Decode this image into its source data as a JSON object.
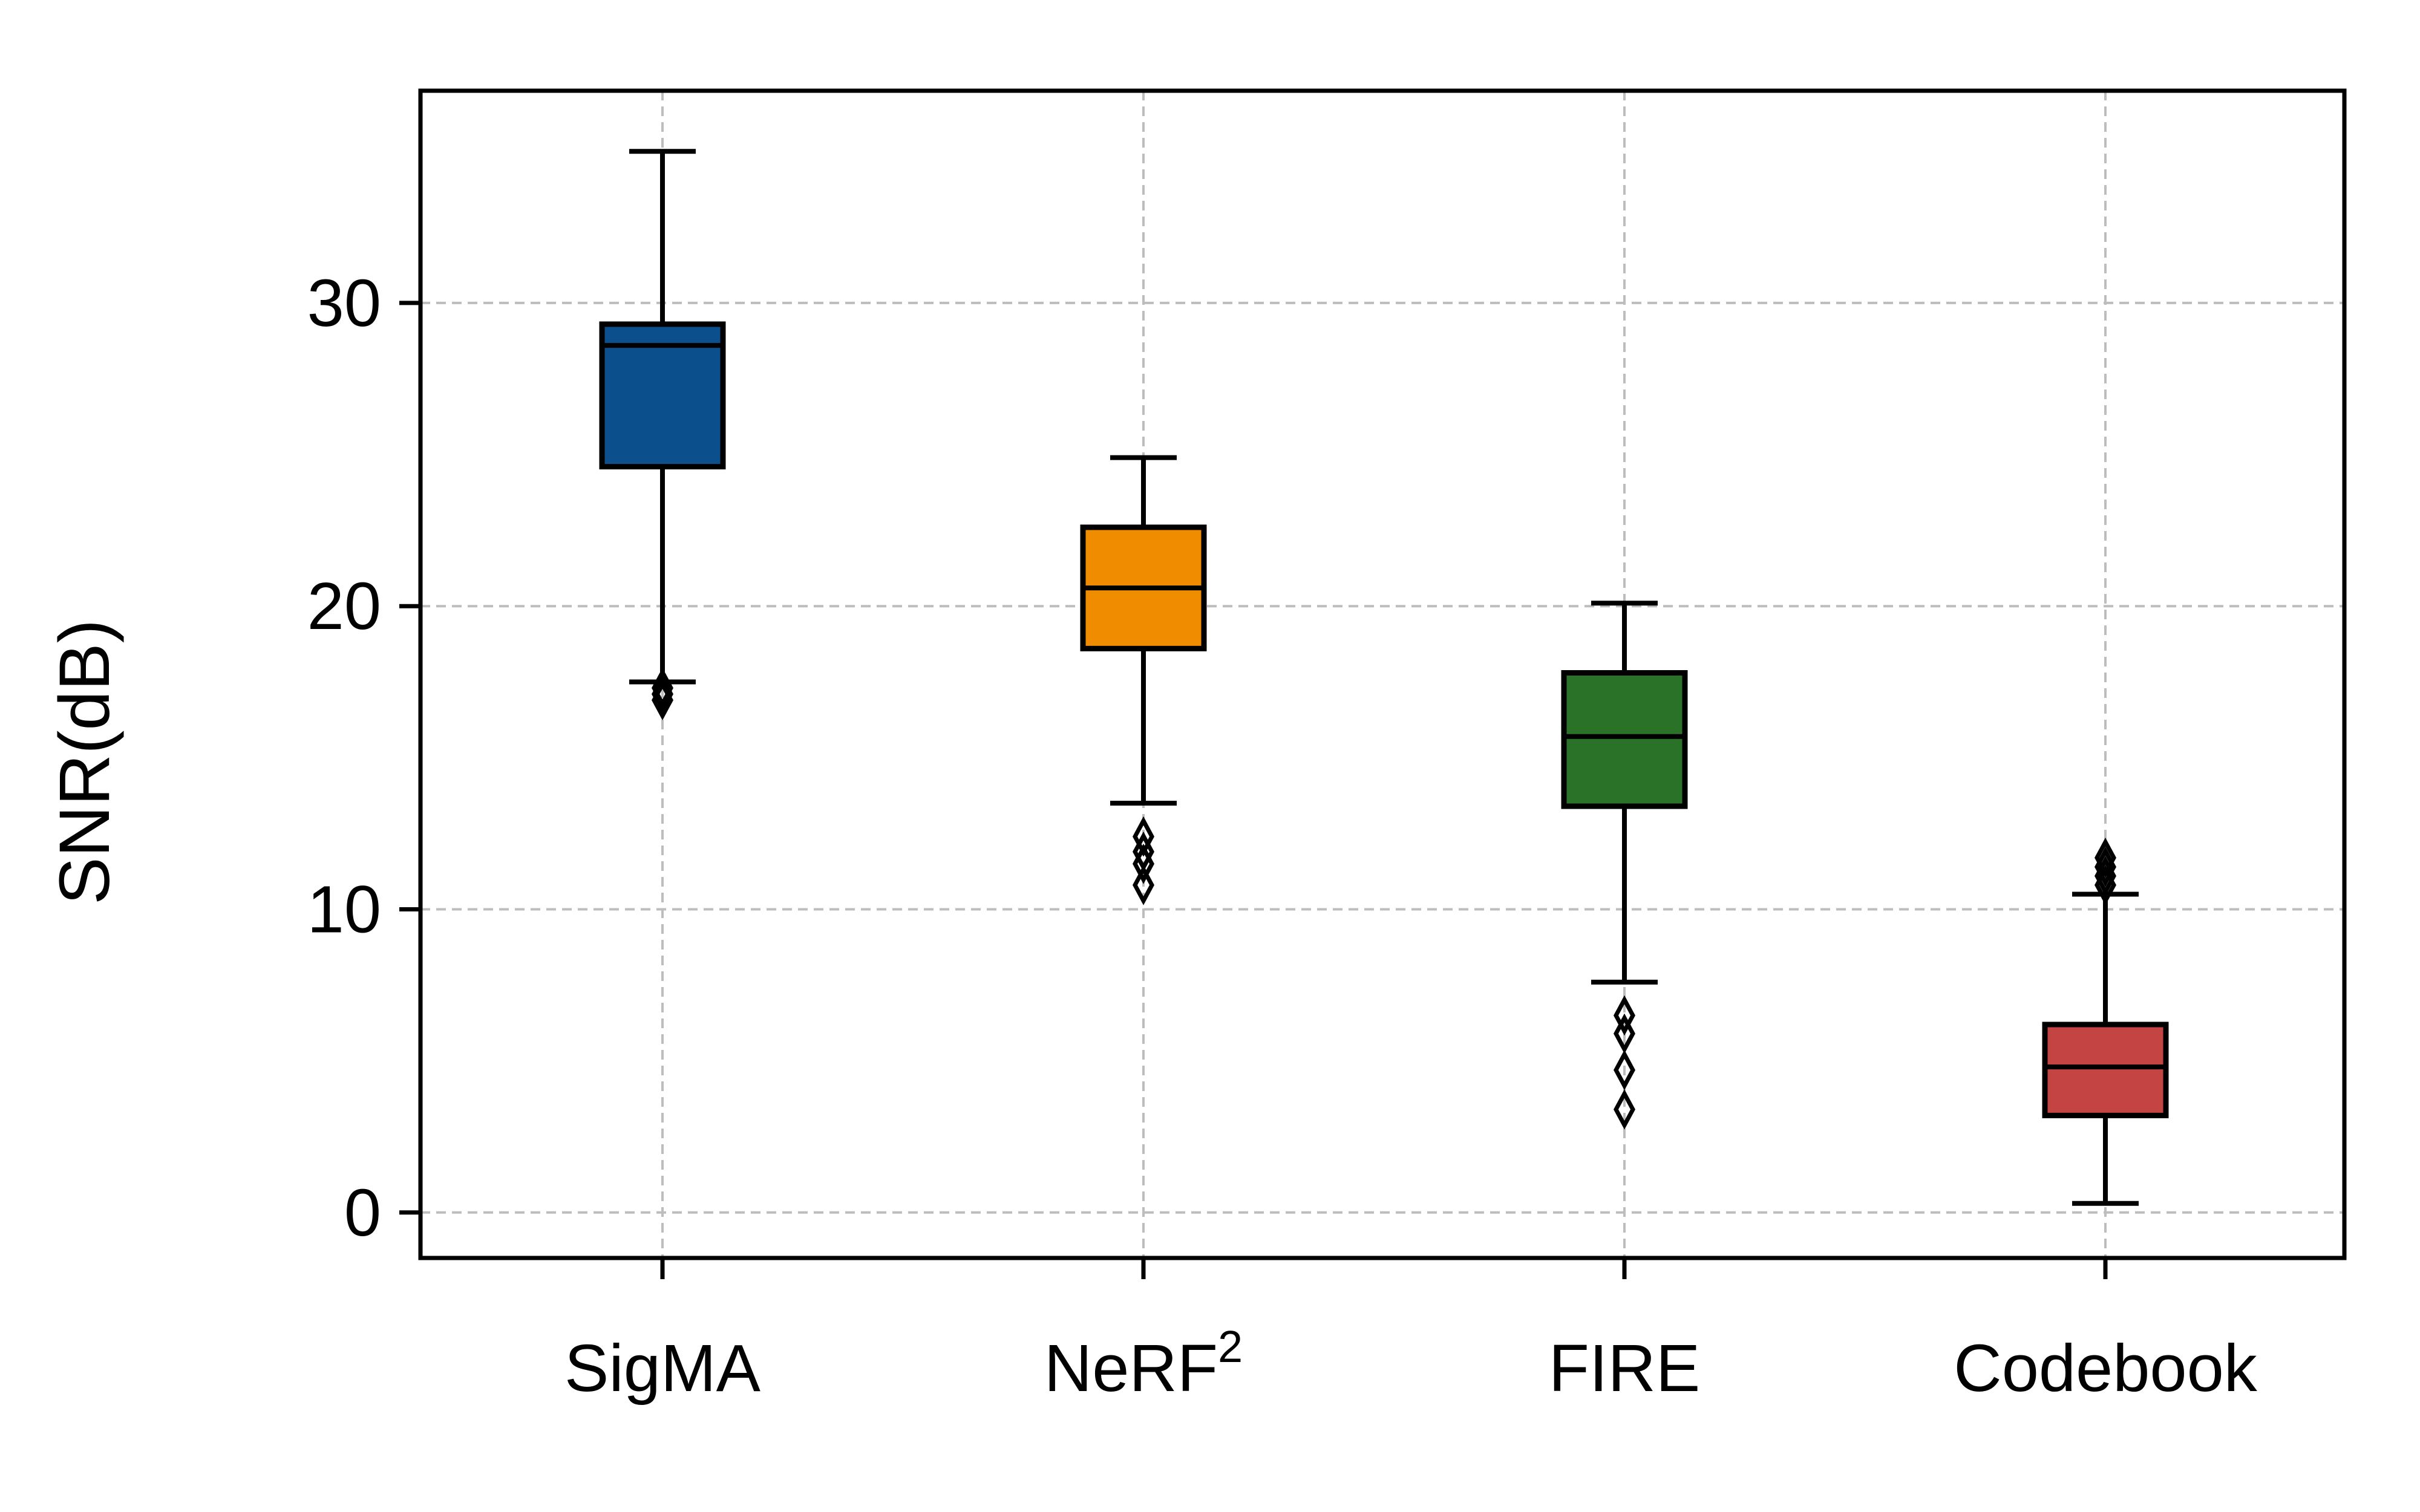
{
  "chart_data": {
    "type": "box",
    "title": "",
    "xlabel": "",
    "ylabel": "SNR(dB)",
    "ylim": [
      -1.5,
      37
    ],
    "yticks": [
      0,
      10,
      20,
      30
    ],
    "grid": true,
    "categories": [
      {
        "base": "SigMA",
        "sup": ""
      },
      {
        "base": "NeRF",
        "sup": "2"
      },
      {
        "base": "FIRE",
        "sup": ""
      },
      {
        "base": "Codebook",
        "sup": ""
      }
    ],
    "boxes": [
      {
        "whisker_low": 17.5,
        "q1": 24.6,
        "median": 28.6,
        "q3": 29.3,
        "whisker_high": 35.0,
        "outliers": [
          17.3,
          17.1,
          16.9
        ],
        "color": "#0b4f8c"
      },
      {
        "whisker_low": 13.5,
        "q1": 18.6,
        "median": 20.6,
        "q3": 22.6,
        "whisker_high": 24.9,
        "outliers": [
          12.4,
          11.9,
          11.5,
          10.8
        ],
        "color": "#f08c00"
      },
      {
        "whisker_low": 7.6,
        "q1": 13.4,
        "median": 15.7,
        "q3": 17.8,
        "whisker_high": 20.1,
        "outliers": [
          6.5,
          5.9,
          4.7,
          3.4
        ],
        "color": "#2a7228"
      },
      {
        "whisker_low": 0.3,
        "q1": 3.2,
        "median": 4.8,
        "q3": 6.2,
        "whisker_high": 10.5,
        "outliers": [
          10.8,
          11.1,
          11.4,
          11.7
        ],
        "color": "#c44444"
      }
    ]
  }
}
